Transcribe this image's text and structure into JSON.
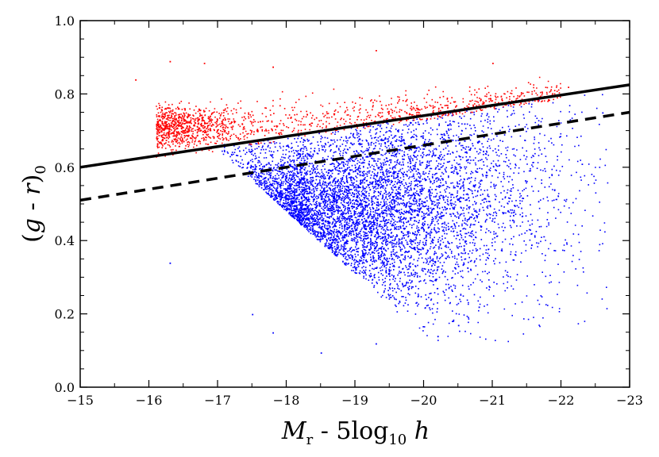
{
  "chart_data": {
    "type": "scatter",
    "title": "",
    "xlabel": {
      "main": "M",
      "main_sub": "r",
      "rest": " - 5log",
      "rest_sub": "10",
      "tail": " h"
    },
    "ylabel": {
      "open": "(",
      "var1": "g",
      "mid": " - ",
      "var2": "r",
      "close": ")",
      "sub": "0"
    },
    "xlim": [
      -15,
      -23
    ],
    "ylim": [
      0.0,
      1.0
    ],
    "x_ticks": [
      "−15",
      "−16",
      "−17",
      "−18",
      "−19",
      "−20",
      "−21",
      "−22",
      "−23"
    ],
    "y_ticks": [
      "0.0",
      "0.2",
      "0.4",
      "0.6",
      "0.8",
      "1.0"
    ],
    "colors": {
      "red_sequence": "#ff0000",
      "blue_cloud": "#0000ff",
      "lines": "#000000"
    },
    "lines": [
      {
        "name": "solid-divider",
        "style": "solid",
        "x": [
          -15,
          -23
        ],
        "y": [
          0.6,
          0.825
        ]
      },
      {
        "name": "dashed-divider",
        "style": "dashed",
        "x": [
          -15,
          -23
        ],
        "y": [
          0.51,
          0.75
        ]
      }
    ],
    "series": [
      {
        "name": "red",
        "color": "#ff0000",
        "count": 1500,
        "distribution": {
          "x_range": [
            -16.1,
            -22.1
          ],
          "y_center": [
            0.71,
            0.78
          ],
          "scatter": 0.03,
          "peak_x": -16.6
        },
        "outliers": [
          [
            -19.3,
            0.92
          ],
          [
            -21.0,
            0.885
          ],
          [
            -16.3,
            0.89
          ],
          [
            -15.8,
            0.84
          ],
          [
            -22.1,
            0.82
          ],
          [
            -16.8,
            0.885
          ],
          [
            -17.8,
            0.875
          ]
        ]
      },
      {
        "name": "blue",
        "color": "#0000ff",
        "count": 6500,
        "distribution": {
          "x_range": [
            -16.3,
            -22.5
          ],
          "y_center": 0.43,
          "peak_x": -18.0
        },
        "outliers": [
          [
            -18.5,
            0.095
          ],
          [
            -19.3,
            0.12
          ],
          [
            -20.2,
            0.14
          ],
          [
            -20.5,
            0.17
          ],
          [
            -20.8,
            0.22
          ],
          [
            -22.3,
            0.61
          ],
          [
            -22.6,
            0.75
          ],
          [
            -21.3,
            0.47
          ],
          [
            -21.9,
            0.54
          ],
          [
            -16.3,
            0.34
          ],
          [
            -17.8,
            0.15
          ],
          [
            -17.5,
            0.2
          ]
        ]
      }
    ]
  }
}
